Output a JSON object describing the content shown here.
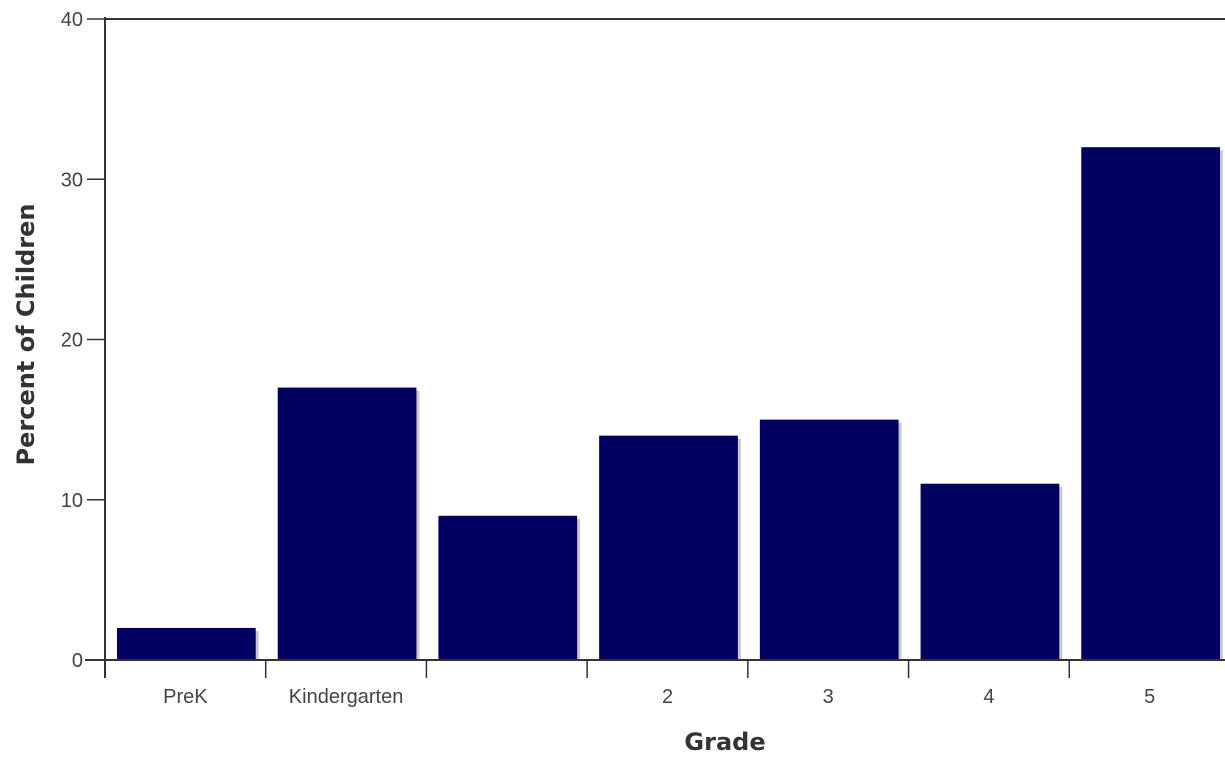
{
  "chart_data": {
    "type": "bar",
    "categories": [
      "PreK",
      "Kindergarten",
      "",
      "2",
      "3",
      "4",
      "5"
    ],
    "values": [
      2,
      17,
      9,
      14,
      15,
      11,
      32
    ],
    "title": "",
    "xlabel": "Grade",
    "ylabel": "Percent of Children",
    "ylim": [
      0,
      40
    ],
    "yticks": [
      0,
      10,
      20,
      30,
      40
    ],
    "grid": false,
    "legend": "none",
    "bar_color": "#000060",
    "bar_shadow_color": "#c8c8d0",
    "axis_color": "#333333"
  }
}
